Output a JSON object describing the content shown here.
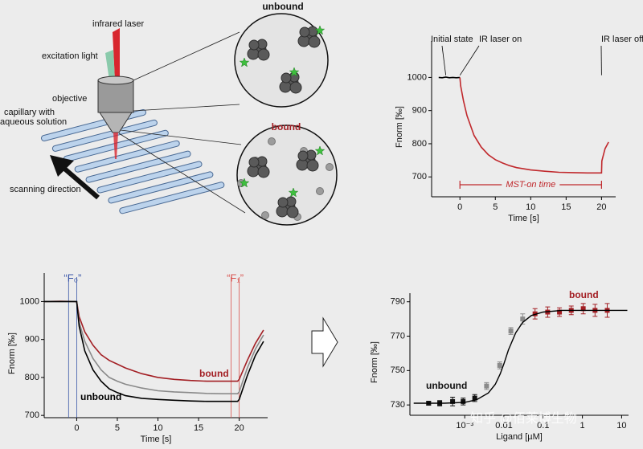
{
  "diagram": {
    "labels": [
      "infrared laser",
      "excitation light",
      "objective",
      "capillary with",
      "aqueous solution",
      "scanning direction"
    ],
    "unbound": "unbound",
    "bound": "bound"
  },
  "chart_data": [
    {
      "type": "line",
      "xlabel": "Time [s]",
      "ylabel": "Fnorm [‰]",
      "xlim": [
        -4,
        22
      ],
      "ylim": [
        640,
        1110
      ],
      "xticks": [
        0,
        5,
        10,
        15,
        20
      ],
      "yticks": [
        700,
        800,
        900,
        1000
      ],
      "series": [
        {
          "color": "#000000",
          "x": [
            -3,
            -2.5,
            -2,
            -1.5,
            -1,
            -0.5,
            0
          ],
          "values": [
            1000,
            999,
            1001,
            999,
            1000,
            999,
            1000
          ]
        },
        {
          "color": "#c0282c",
          "x": [
            0,
            0.1,
            0.5,
            1,
            2,
            3,
            4,
            5,
            6,
            7,
            8,
            10,
            12,
            14,
            16,
            18,
            20,
            20.05,
            20.5,
            21
          ],
          "values": [
            1000,
            975,
            930,
            885,
            825,
            790,
            767,
            752,
            742,
            734,
            728,
            721,
            717,
            714,
            713,
            712,
            712,
            748,
            785,
            805
          ]
        }
      ],
      "annotations": [
        {
          "text": "Initial state",
          "x": -2
        },
        {
          "text": "IR laser on",
          "x": 0
        },
        {
          "text": "IR laser off",
          "x": 20
        }
      ],
      "span": {
        "text": "MST-on time",
        "x": [
          0,
          20
        ],
        "color": "#c0282c"
      }
    },
    {
      "type": "line",
      "xlabel": "Time [s]",
      "ylabel": "Fnorm [‰]",
      "xlim": [
        -4,
        23.5
      ],
      "ylim": [
        694,
        1075
      ],
      "xticks": [
        0,
        5,
        10,
        15,
        20
      ],
      "yticks": [
        700,
        800,
        900,
        1000
      ],
      "x": [
        -4,
        -2,
        0,
        0.3,
        1,
        2,
        3,
        4,
        5,
        6,
        8,
        10,
        12,
        14,
        16,
        18,
        19.8,
        20,
        21,
        22,
        23
      ],
      "series": [
        {
          "name": "bound",
          "color": "#a31f24",
          "values": [
            1000,
            1001,
            1000,
            960,
            920,
            885,
            860,
            845,
            835,
            825,
            810,
            800,
            795,
            792,
            790,
            790,
            790,
            795,
            845,
            890,
            925
          ]
        },
        {
          "color": "#8a8a8a",
          "values": [
            1000,
            1000,
            1000,
            945,
            895,
            850,
            820,
            800,
            790,
            782,
            772,
            765,
            762,
            760,
            758,
            757,
            757,
            762,
            825,
            875,
            912
          ]
        },
        {
          "name": "unbound",
          "color": "#000000",
          "values": [
            1000,
            1000,
            1000,
            935,
            870,
            820,
            790,
            770,
            760,
            752,
            745,
            742,
            740,
            738,
            737,
            737,
            737,
            742,
            805,
            858,
            895
          ]
        }
      ],
      "windows": [
        {
          "label": "“F₀”",
          "x": [
            -1,
            0
          ],
          "color": "#3a56a8"
        },
        {
          "label": "“F₁”",
          "x": [
            19,
            20
          ],
          "color": "#d9534f"
        }
      ]
    },
    {
      "type": "scatter",
      "xlabel": "Ligand [µM]",
      "ylabel": "Fnorm [‰]",
      "xlog": true,
      "xlim": [
        4e-05,
        15
      ],
      "ylim": [
        724,
        795
      ],
      "xticks": [
        {
          "value": 0.001,
          "label": "10⁻³"
        },
        0.01,
        0.1,
        1,
        10
      ],
      "yticks": [
        730,
        750,
        770,
        790
      ],
      "series": [
        {
          "name": "unbound",
          "color": "#111111",
          "x": [
            0.00012,
            0.00023,
            0.00049,
            0.00091,
            0.0018
          ],
          "values": [
            731,
            731,
            732,
            732,
            734
          ],
          "errors": [
            1,
            1.5,
            2.5,
            2,
            2
          ]
        },
        {
          "color": "#8a8a8a",
          "x": [
            0.0036,
            0.0078,
            0.015,
            0.03
          ],
          "values": [
            741,
            753,
            773,
            780
          ],
          "errors": [
            2,
            2,
            2,
            3
          ]
        },
        {
          "name": "bound",
          "color": "#a31f24",
          "x": [
            0.062,
            0.13,
            0.26,
            0.52,
            1.05,
            2.1,
            4.3
          ],
          "values": [
            783,
            784,
            784,
            785,
            786,
            785,
            785
          ],
          "errors": [
            3,
            3,
            2.5,
            2.5,
            3,
            3.5,
            4
          ]
        }
      ],
      "fit": {
        "color": "#000000",
        "x": [
          5e-05,
          0.0003,
          0.001,
          0.002,
          0.004,
          0.006,
          0.008,
          0.01,
          0.013,
          0.02,
          0.03,
          0.05,
          0.1,
          0.3,
          1,
          14
        ],
        "values": [
          731,
          731,
          731.5,
          733,
          737,
          742,
          748,
          754,
          762,
          772,
          778,
          782,
          784,
          785,
          785,
          785
        ]
      }
    }
  ],
  "watermark": "知乎 @佰莱博生物"
}
